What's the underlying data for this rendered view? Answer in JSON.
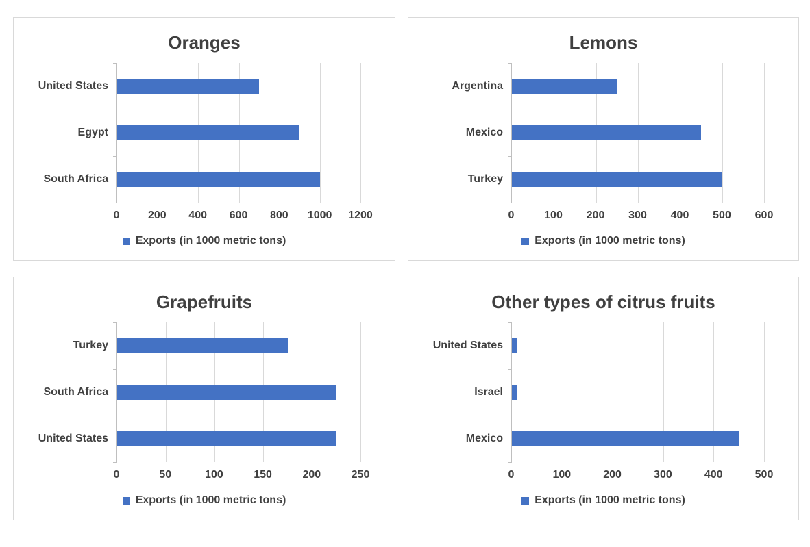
{
  "colors": {
    "bar": "#4472C4",
    "text": "#404040",
    "panel_border": "#D9D9D9",
    "gridline": "#D9D9D9",
    "axis_line": "#BFBFBF",
    "background": "#FFFFFF"
  },
  "chart_data": [
    {
      "type": "bar",
      "orientation": "horizontal",
      "title": "Oranges",
      "categories": [
        "United States",
        "Egypt",
        "South Africa"
      ],
      "values": [
        700,
        900,
        1000
      ],
      "xlim": [
        0,
        1200
      ],
      "xticks": [
        0,
        200,
        400,
        600,
        800,
        1000,
        1200
      ],
      "grid": true,
      "legend": "Exports (in 1000 metric tons)",
      "legend_position": "bottom"
    },
    {
      "type": "bar",
      "orientation": "horizontal",
      "title": "Lemons",
      "categories": [
        "Argentina",
        "Mexico",
        "Turkey"
      ],
      "values": [
        250,
        450,
        500
      ],
      "xlim": [
        0,
        600
      ],
      "xticks": [
        0,
        100,
        200,
        300,
        400,
        500,
        600
      ],
      "grid": true,
      "legend": "Exports (in 1000 metric tons)",
      "legend_position": "bottom"
    },
    {
      "type": "bar",
      "orientation": "horizontal",
      "title": "Grapefruits",
      "categories": [
        "Turkey",
        "South Africa",
        "United States"
      ],
      "values": [
        175,
        225,
        225
      ],
      "xlim": [
        0,
        250
      ],
      "xticks": [
        0,
        50,
        100,
        150,
        200,
        250
      ],
      "grid": true,
      "legend": "Exports (in 1000 metric tons)",
      "legend_position": "bottom"
    },
    {
      "type": "bar",
      "orientation": "horizontal",
      "title": "Other types of citrus fruits",
      "categories": [
        "United States",
        "Israel",
        "Mexico"
      ],
      "values": [
        10,
        10,
        450
      ],
      "xlim": [
        0,
        500
      ],
      "xticks": [
        0,
        100,
        200,
        300,
        400,
        500
      ],
      "grid": true,
      "legend": "Exports (in 1000 metric tons)",
      "legend_position": "bottom"
    }
  ]
}
